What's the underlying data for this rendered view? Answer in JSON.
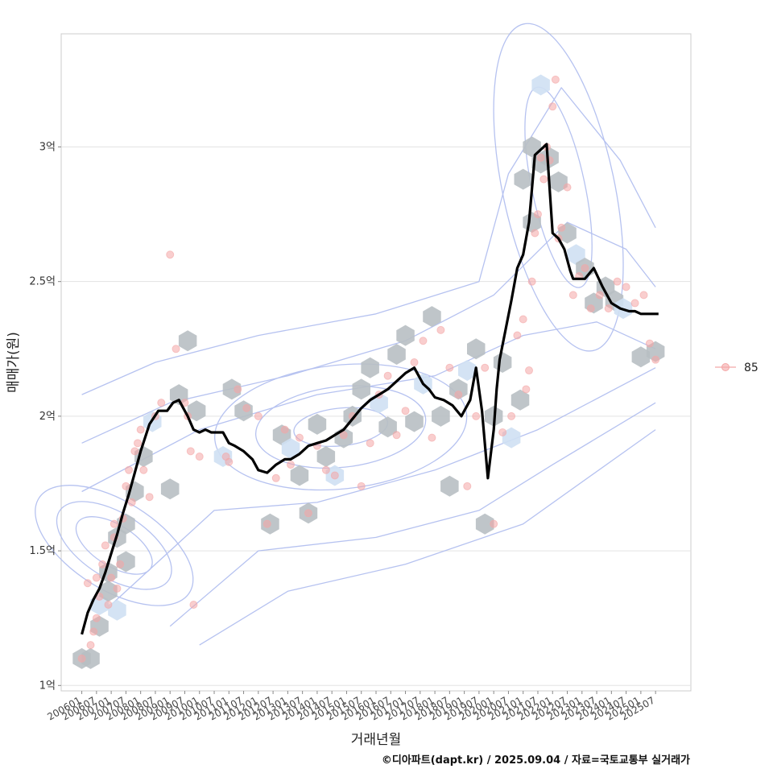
{
  "chart_data": {
    "type": "line",
    "xlabel": "거래년월",
    "ylabel": "매매가(원)",
    "caption": "©디아파트(dapt.kr) / 2025.09.04 / 자료=국토교통부 실거래가",
    "x_tick_labels": [
      "200601",
      "200607",
      "200701",
      "200707",
      "200801",
      "200807",
      "200901",
      "200907",
      "201001",
      "201007",
      "201101",
      "201107",
      "201201",
      "201207",
      "201301",
      "201307",
      "201401",
      "201407",
      "201501",
      "201507",
      "201601",
      "201607",
      "201701",
      "201707",
      "201801",
      "201807",
      "201901",
      "201907",
      "202001",
      "202007",
      "202101",
      "202107",
      "202201",
      "202207",
      "202301",
      "202307",
      "202401",
      "202407",
      "202501",
      "202507"
    ],
    "y_ticks": [
      {
        "value": 1.0,
        "label": "1억"
      },
      {
        "value": 1.5,
        "label": "1.5억"
      },
      {
        "value": 2.0,
        "label": "2억"
      },
      {
        "value": 2.5,
        "label": "2.5억"
      },
      {
        "value": 3.0,
        "label": "3억"
      }
    ],
    "y_unit": "억",
    "ylim": [
      0.98,
      3.42
    ],
    "xlim": [
      2005.3,
      2026.7
    ],
    "grid": "horizontal",
    "legend": {
      "position": "right",
      "entries": [
        {
          "label": "85",
          "color": "#f4a6a6"
        }
      ]
    },
    "colors": {
      "trend": "#000000",
      "points": "#f4a6a6",
      "hex": "#b8bfc3",
      "hex_light": "#cfe0f3",
      "contour": "#a9b8ee"
    },
    "series": [
      {
        "kind": "moving-average",
        "x": [
          2006.0,
          2006.2,
          2006.4,
          2006.6,
          2006.8,
          2007.0,
          2007.2,
          2007.4,
          2007.6,
          2007.8,
          2008.0,
          2008.3,
          2008.6,
          2008.9,
          2009.1,
          2009.3,
          2009.6,
          2009.8,
          2010.0,
          2010.2,
          2010.4,
          2010.6,
          2010.8,
          2011.0,
          2011.2,
          2011.5,
          2011.8,
          2012.0,
          2012.3,
          2012.6,
          2012.9,
          2013.1,
          2013.4,
          2013.7,
          2014.0,
          2014.3,
          2014.6,
          2014.9,
          2015.2,
          2015.5,
          2015.8,
          2016.1,
          2016.4,
          2016.7,
          2017.0,
          2017.3,
          2017.6,
          2017.8,
          2018.0,
          2018.3,
          2018.6,
          2018.9,
          2019.2,
          2019.4,
          2019.6,
          2019.8,
          2020.0,
          2020.1,
          2020.2,
          2020.4,
          2020.6,
          2020.8,
          2021.0,
          2021.2,
          2021.4,
          2021.6,
          2021.8,
          2022.0,
          2022.2,
          2022.4,
          2022.6,
          2022.7,
          2022.9,
          2023.1,
          2023.4,
          2023.7,
          2024.0,
          2024.3,
          2024.6,
          2024.8,
          2025.0,
          2025.3,
          2025.6
        ],
        "y": [
          1.19,
          1.27,
          1.32,
          1.36,
          1.42,
          1.49,
          1.56,
          1.64,
          1.71,
          1.79,
          1.87,
          1.97,
          2.02,
          2.02,
          2.05,
          2.06,
          2.0,
          1.95,
          1.94,
          1.95,
          1.94,
          1.94,
          1.94,
          1.9,
          1.89,
          1.87,
          1.84,
          1.8,
          1.79,
          1.82,
          1.84,
          1.84,
          1.86,
          1.89,
          1.9,
          1.91,
          1.93,
          1.95,
          1.99,
          2.03,
          2.06,
          2.08,
          2.1,
          2.13,
          2.16,
          2.18,
          2.12,
          2.1,
          2.07,
          2.06,
          2.04,
          2.0,
          2.06,
          2.18,
          2.02,
          1.77,
          1.95,
          2.1,
          2.21,
          2.32,
          2.43,
          2.55,
          2.6,
          2.72,
          2.97,
          2.99,
          3.01,
          2.68,
          2.66,
          2.62,
          2.54,
          2.51,
          2.51,
          2.51,
          2.55,
          2.48,
          2.42,
          2.4,
          2.39,
          2.39,
          2.38,
          2.38,
          2.38
        ]
      },
      {
        "kind": "scatter",
        "name": "85",
        "x": [
          2006.0,
          2006.2,
          2006.3,
          2006.4,
          2006.5,
          2006.5,
          2006.6,
          2006.7,
          2006.8,
          2006.9,
          2007.0,
          2007.1,
          2007.1,
          2007.2,
          2007.3,
          2007.4,
          2007.5,
          2007.6,
          2007.7,
          2007.8,
          2007.9,
          2008.0,
          2008.1,
          2008.3,
          2008.5,
          2008.7,
          2009.0,
          2009.2,
          2009.5,
          2009.6,
          2009.7,
          2009.8,
          2010.0,
          2010.9,
          2011.0,
          2011.3,
          2011.6,
          2012.0,
          2012.3,
          2012.6,
          2012.9,
          2013.1,
          2013.4,
          2013.7,
          2014.0,
          2014.3,
          2014.6,
          2014.9,
          2015.2,
          2015.5,
          2015.8,
          2016.1,
          2016.4,
          2016.7,
          2017.0,
          2017.3,
          2017.6,
          2017.9,
          2018.2,
          2018.5,
          2018.8,
          2019.1,
          2019.4,
          2019.7,
          2020.0,
          2020.3,
          2020.6,
          2020.8,
          2021.0,
          2021.1,
          2021.2,
          2021.3,
          2021.4,
          2021.5,
          2021.6,
          2021.7,
          2021.8,
          2021.9,
          2022.0,
          2022.1,
          2022.2,
          2022.3,
          2022.5,
          2022.7,
          2022.9,
          2023.1,
          2023.3,
          2023.6,
          2023.9,
          2024.2,
          2024.5,
          2024.8,
          2025.1,
          2025.3,
          2025.5
        ],
        "y": [
          1.1,
          1.38,
          1.15,
          1.2,
          1.25,
          1.4,
          1.33,
          1.45,
          1.52,
          1.3,
          1.4,
          1.55,
          1.6,
          1.36,
          1.45,
          1.62,
          1.74,
          1.8,
          1.68,
          1.87,
          1.9,
          1.95,
          1.8,
          1.7,
          2.0,
          2.05,
          2.6,
          2.25,
          2.05,
          2.0,
          1.87,
          1.3,
          1.85,
          1.85,
          1.83,
          2.1,
          2.03,
          2.0,
          1.6,
          1.77,
          1.95,
          1.82,
          1.92,
          1.64,
          1.89,
          1.8,
          1.78,
          1.93,
          2.0,
          1.74,
          1.9,
          2.08,
          2.15,
          1.93,
          2.02,
          2.2,
          2.28,
          1.92,
          2.32,
          2.18,
          2.08,
          1.74,
          2.0,
          2.18,
          1.6,
          1.94,
          2.0,
          2.3,
          2.36,
          2.1,
          2.17,
          2.5,
          2.68,
          2.75,
          2.96,
          2.88,
          3.0,
          2.95,
          3.15,
          3.25,
          2.66,
          2.7,
          2.85,
          2.45,
          2.52,
          2.55,
          2.4,
          2.45,
          2.4,
          2.5,
          2.48,
          2.42,
          2.45,
          2.27,
          2.21
        ]
      },
      {
        "kind": "hexbin",
        "x": [
          2006.0,
          2006.3,
          2006.6,
          2006.6,
          2006.9,
          2006.9,
          2007.2,
          2007.2,
          2007.5,
          2007.5,
          2007.8,
          2008.1,
          2008.4,
          2009.0,
          2009.3,
          2009.6,
          2009.9,
          2010.8,
          2011.1,
          2011.5,
          2012.4,
          2012.8,
          2013.1,
          2013.4,
          2013.7,
          2014.0,
          2014.3,
          2014.6,
          2014.9,
          2015.2,
          2015.5,
          2015.8,
          2016.1,
          2016.4,
          2016.7,
          2017.0,
          2017.3,
          2017.6,
          2017.9,
          2018.2,
          2018.5,
          2018.8,
          2019.1,
          2019.4,
          2019.7,
          2020.0,
          2020.3,
          2020.6,
          2020.9,
          2021.0,
          2021.3,
          2021.3,
          2021.6,
          2021.6,
          2021.9,
          2022.2,
          2022.5,
          2022.8,
          2023.1,
          2023.4,
          2023.8,
          2024.1,
          2024.4,
          2025.0,
          2025.5
        ],
        "y": [
          1.1,
          1.1,
          1.3,
          1.22,
          1.42,
          1.35,
          1.55,
          1.28,
          1.6,
          1.46,
          1.72,
          1.85,
          1.98,
          1.73,
          2.08,
          2.28,
          2.02,
          1.85,
          2.1,
          2.02,
          1.6,
          1.93,
          1.88,
          1.78,
          1.64,
          1.97,
          1.85,
          1.78,
          1.92,
          2.0,
          2.1,
          2.18,
          2.05,
          1.96,
          2.23,
          2.3,
          1.98,
          2.12,
          2.37,
          2.0,
          1.74,
          2.1,
          2.17,
          2.25,
          1.6,
          2.0,
          2.2,
          1.92,
          2.06,
          2.88,
          2.72,
          3.0,
          3.23,
          2.94,
          2.96,
          2.87,
          2.68,
          2.6,
          2.55,
          2.42,
          2.48,
          2.43,
          2.4,
          2.22,
          2.24
        ]
      }
    ]
  }
}
